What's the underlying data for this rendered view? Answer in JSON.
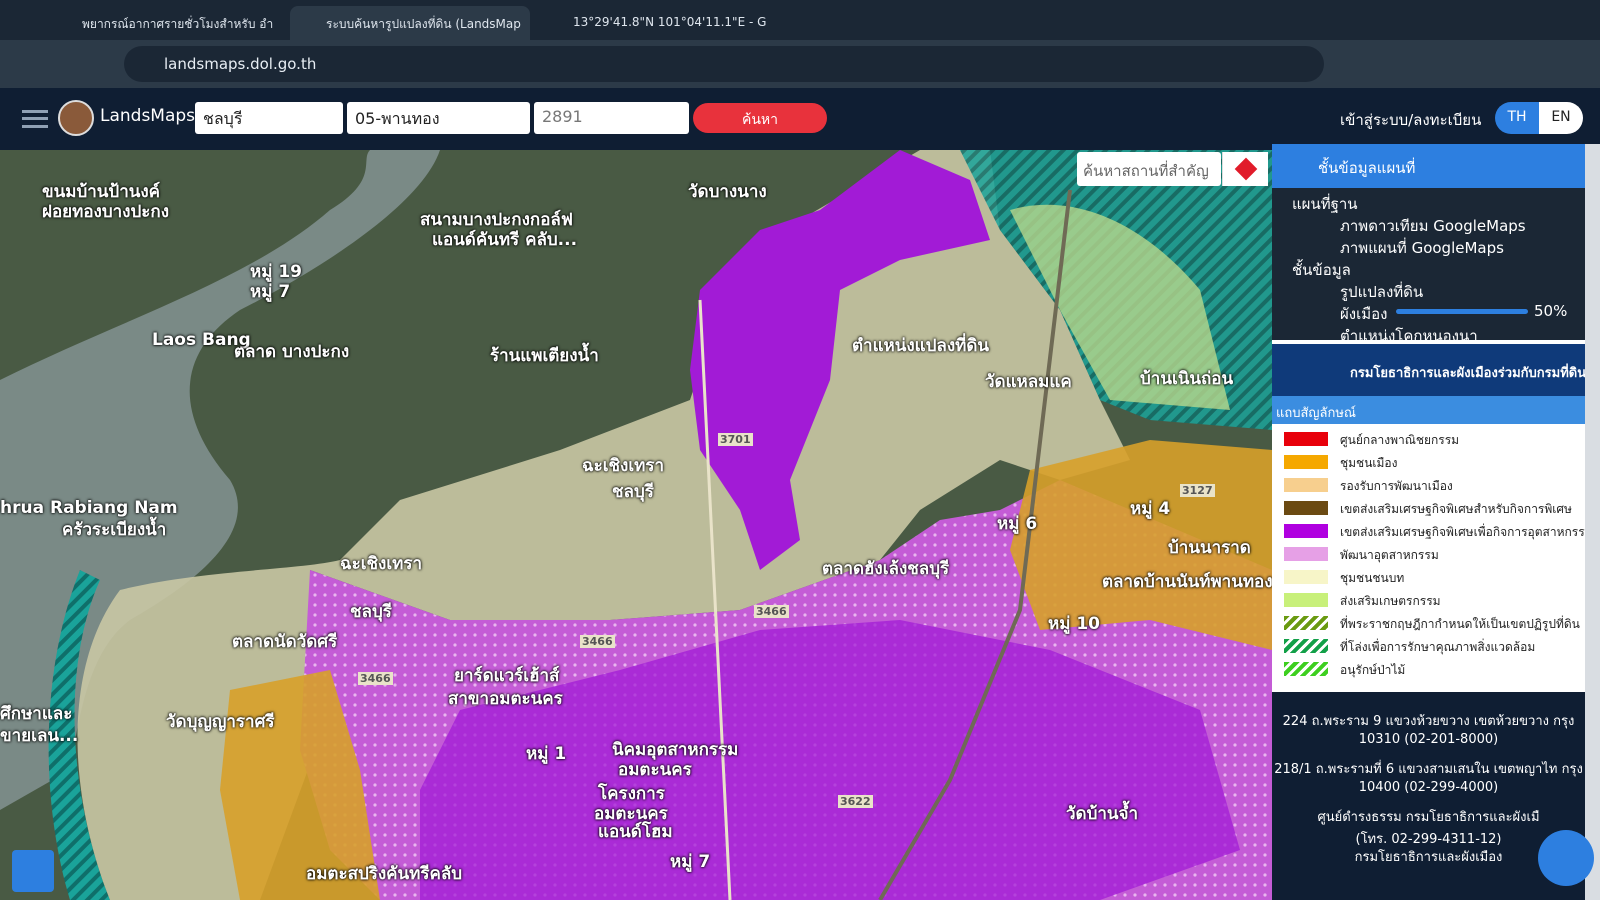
{
  "browser": {
    "tabs": [
      "พยากรณ์อากาศรายชั่วโมงสำหรับ อำ",
      "ระบบค้นหารูปแปลงที่ดิน (LandsMap",
      "13°29'41.8\"N 101°04'11.1\"E - G"
    ],
    "address": "landsmaps.dol.go.th"
  },
  "header": {
    "brand": "LandsMaps",
    "province": "ชลบุรี",
    "district": "05-พานทอง",
    "parcel": "2891",
    "search": "ค้นหา",
    "login": "เข้าสู่ระบบ/ลงทะเบียน",
    "languages": [
      "TH",
      "EN"
    ]
  },
  "map": {
    "search_placeholder": "ค้นหาสถานที่สำคัญ",
    "labels": [
      "ขนมบ้านป้านงค์",
      "ฝอยทองบางปะกง",
      "สนามบางปะกงกอล์ฟ",
      "แอนด์คันทรี คลับ...",
      "วัดบางนาง",
      "หมู่ 19",
      "หมู่ 7",
      "Laos Bang",
      "ตลาด บางปะกง",
      "ร้านแพเตียงน้ำ",
      "ตำแหน่งแปลงที่ดิน",
      "วัดแหลมแค",
      "บ้านเนินถ่อน",
      "ฉะเชิงเทรา",
      "ชลบุรี",
      "3701",
      "hrua Rabiang Nam",
      "ครัวระเบียงน้ำ",
      "ฉะเชิงเทรา",
      "ชลบุรี",
      "ตลาดนัดวัดศรี",
      "ตลาดฮังเล้งชลบุรี",
      "หมู่ 6",
      "หมู่ 4",
      "3127",
      "บ้านนาราด",
      "ตลาดบ้านนันท์พานทอง",
      "หมู่ 10",
      "3466",
      "3466",
      "3466",
      "ยาร์ดแวร์เฮ้าส์",
      "สาขาอมตะนคร",
      "วัดบุญญาราศรี",
      "ศึกษาและ",
      "ขายเลน...",
      "หมู่ 1",
      "นิคมอุตสาหกรรม",
      "อมตะนคร",
      "โครงการ",
      "อมตะนคร",
      "แอนด์โฮม",
      "3622",
      "วัดบ้านจ้ำ",
      "หมู่ 7",
      "อมตะสปริงคันทรีคลับ"
    ]
  },
  "panel": {
    "title": "ชั้นข้อมูลแผนที่",
    "basemap_heading": "แผนที่ฐาน",
    "basemaps": [
      "ภาพดาวเทียม GoogleMaps",
      "ภาพแผนที่ GoogleMaps"
    ],
    "layers_heading": "ชั้นข้อมูล",
    "layers": [
      "รูปแปลงที่ดิน",
      "ผังเมือง",
      "ตำแหน่งโคกหนองนา"
    ],
    "opacity": "50%",
    "agency": "กรมโยธาธิการและผังเมืองร่วมกับกรมที่ดิน",
    "legend_title": "แถบสัญลักษณ์",
    "legend": [
      {
        "label": "ศูนย์กลางพาณิชยกรรม",
        "color": "#e8000b"
      },
      {
        "label": "ชุมชนเมือง",
        "color": "#f5a800"
      },
      {
        "label": "รองรับการพัฒนาเมือง",
        "color": "#f7cf8e"
      },
      {
        "label": "เขตส่งเสริมเศรษฐกิจพิเศษสำหรับกิจการพิเศษ",
        "color": "#6b4a12"
      },
      {
        "label": "เขตส่งเสริมเศรษฐกิจพิเศษเพื่อกิจการอุตสาหกรรม",
        "color": "#b000e0"
      },
      {
        "label": "พัฒนาอุตสาหกรรม",
        "color": "#e6a0e6"
      },
      {
        "label": "ชุมชนชนบท",
        "color": "#f7f5c8"
      },
      {
        "label": "ส่งเสริมเกษตรกรรม",
        "color": "#c8f07a"
      },
      {
        "label": "ที่พระราชกฤษฎีกากำหนดให้เป็นเขตปฏิรูปที่ดิน",
        "color": "#6a9a10",
        "hatch": true
      },
      {
        "label": "ที่โล่งเพื่อการรักษาคุณภาพสิ่งแวดล้อม",
        "color": "#12a048",
        "hatch": true
      },
      {
        "label": "อนุรักษ์ป่าไม้",
        "color": "#3ecf20",
        "hatch": true
      }
    ]
  },
  "footer": {
    "lines": [
      "224 ถ.พระราม 9 แขวงห้วยขวาง เขตห้วยขวาง กรุง",
      "10310 (02-201-8000)",
      "218/1 ถ.พระรามที่ 6 แขวงสามเสนใน เขตพญาไท กรุง",
      "10400 (02-299-4000)",
      "ศูนย์ดำรงธรรม กรมโยธาธิการและผังเมื",
      "(โทร. 02-299-4311-12)",
      "กรมโยธาธิการและผังเมือง"
    ]
  }
}
